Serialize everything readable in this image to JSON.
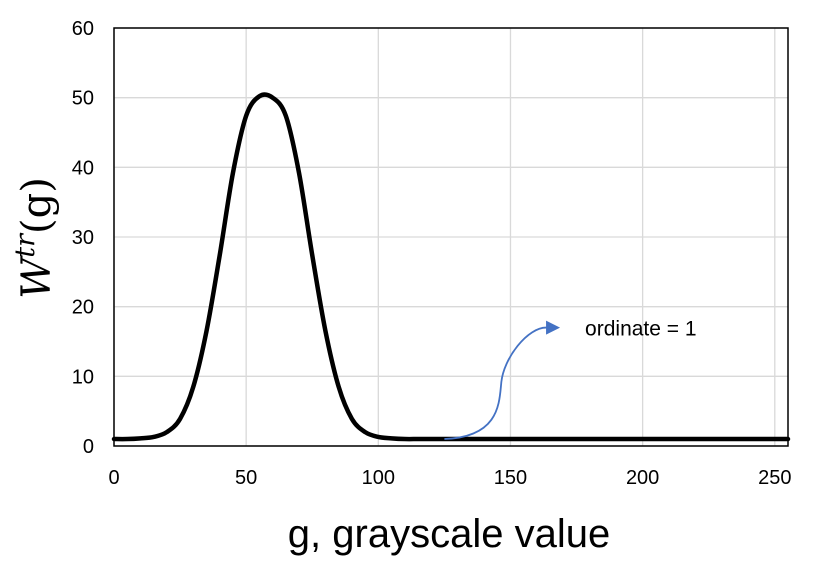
{
  "chart_data": {
    "type": "line",
    "title": "",
    "xlabel": "g, grayscale value",
    "ylabel": {
      "base": "W",
      "sup": "tr",
      "arg": "(g)"
    },
    "xlim": [
      0,
      255
    ],
    "ylim": [
      0,
      60
    ],
    "xticks": [
      0,
      50,
      100,
      150,
      200,
      250
    ],
    "yticks": [
      0,
      10,
      20,
      30,
      40,
      50,
      60
    ],
    "grid": true,
    "legend": "none",
    "series": [
      {
        "color": "#000000",
        "x": [
          0,
          5,
          10,
          15,
          20,
          25,
          30,
          35,
          40,
          45,
          50,
          55,
          60,
          65,
          70,
          75,
          80,
          85,
          90,
          95,
          100,
          105,
          110,
          115,
          120,
          130,
          150,
          200,
          255
        ],
        "y": [
          1,
          1,
          1.1,
          1.3,
          2,
          3.9,
          8.5,
          16.5,
          27.4,
          39.2,
          47.4,
          50.2,
          50,
          47.4,
          39.2,
          27.4,
          16.5,
          8.5,
          3.9,
          2,
          1.3,
          1.1,
          1,
          1,
          1,
          1,
          1,
          1,
          1
        ]
      }
    ],
    "annotations": [
      {
        "text": "ordinate = 1",
        "arrow_from": [
          125,
          1
        ],
        "arrow_to": [
          168,
          17
        ],
        "color": "#4472C4"
      }
    ]
  }
}
